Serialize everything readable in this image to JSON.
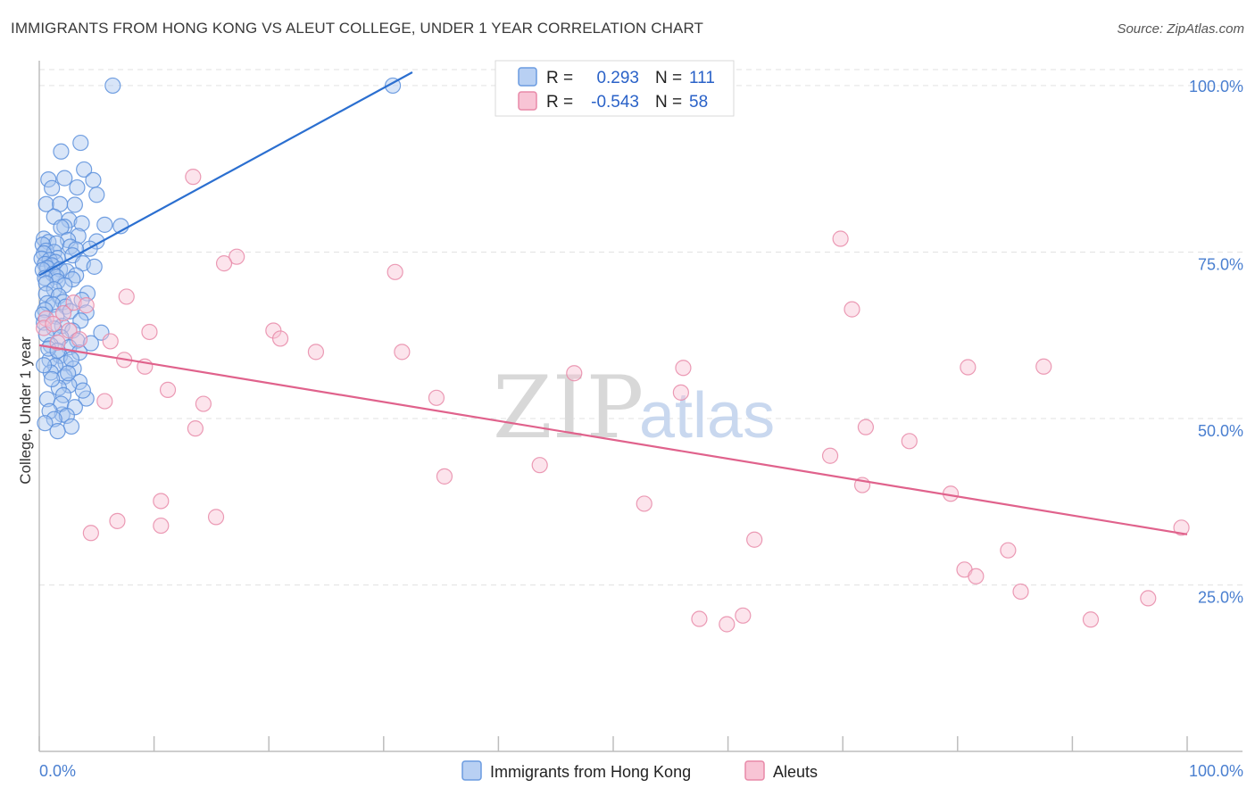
{
  "header": {
    "title": "IMMIGRANTS FROM HONG KONG VS ALEUT COLLEGE, UNDER 1 YEAR CORRELATION CHART",
    "source": "Source: ZipAtlas.com"
  },
  "watermark": {
    "zip": "ZIP",
    "atlas": "atlas"
  },
  "legend": {
    "r_label": "R =",
    "n_label": "N =",
    "rows": [
      {
        "r": "0.293",
        "n": "111",
        "color": "#6a9be0",
        "fill": "#b8d0f3"
      },
      {
        "r": "-0.543",
        "n": "58",
        "color": "#e889a8",
        "fill": "#f8c4d5"
      }
    ]
  },
  "chart_data": {
    "type": "scatter",
    "title": "IMMIGRANTS FROM HONG KONG VS ALEUT COLLEGE, UNDER 1 YEAR CORRELATION CHART",
    "xlabel": "",
    "ylabel": "College, Under 1 year",
    "xlim": [
      0,
      100
    ],
    "ylim": [
      0,
      102
    ],
    "x_tick_labels": [
      "0.0%",
      "100.0%"
    ],
    "y_ticks": [
      25,
      50,
      75,
      100
    ],
    "y_tick_labels": [
      "25.0%",
      "50.0%",
      "75.0%",
      "100.0%"
    ],
    "grid": true,
    "legend_position": "top-center",
    "series": [
      {
        "name": "Immigrants from Hong Kong",
        "color": "#5b8fdc",
        "fill": "#a9c6f0",
        "line_color": "#2b6fd0",
        "trend": {
          "x": [
            0.0,
            32.5
          ],
          "y": [
            71.5,
            102.0
          ]
        },
        "points": [
          [
            6.4,
            100
          ],
          [
            30.8,
            100
          ],
          [
            3.6,
            91.4
          ],
          [
            1.9,
            90.1
          ],
          [
            3.9,
            87.4
          ],
          [
            2.2,
            86.1
          ],
          [
            0.8,
            85.9
          ],
          [
            4.7,
            85.8
          ],
          [
            1.1,
            84.6
          ],
          [
            3.3,
            84.7
          ],
          [
            5.0,
            83.6
          ],
          [
            0.6,
            82.2
          ],
          [
            1.8,
            82.2
          ],
          [
            3.1,
            82.1
          ],
          [
            1.3,
            80.3
          ],
          [
            2.6,
            79.8
          ],
          [
            3.7,
            79.3
          ],
          [
            5.7,
            79.1
          ],
          [
            7.1,
            78.9
          ],
          [
            2.2,
            78.8
          ],
          [
            1.9,
            78.7
          ],
          [
            3.4,
            77.4
          ],
          [
            0.4,
            77.0
          ],
          [
            2.5,
            76.8
          ],
          [
            5.0,
            76.6
          ],
          [
            0.8,
            76.5
          ],
          [
            1.5,
            76.3
          ],
          [
            0.3,
            76.1
          ],
          [
            2.7,
            75.8
          ],
          [
            4.4,
            75.5
          ],
          [
            3.2,
            75.4
          ],
          [
            0.6,
            75.2
          ],
          [
            1.3,
            75.0
          ],
          [
            0.4,
            74.8
          ],
          [
            2.9,
            74.5
          ],
          [
            1.6,
            74.1
          ],
          [
            0.2,
            74.0
          ],
          [
            0.9,
            73.8
          ],
          [
            1.4,
            73.5
          ],
          [
            3.8,
            73.3
          ],
          [
            0.5,
            73.2
          ],
          [
            1.1,
            73.0
          ],
          [
            4.8,
            72.8
          ],
          [
            0.7,
            72.6
          ],
          [
            1.8,
            72.4
          ],
          [
            0.3,
            72.3
          ],
          [
            2.4,
            72.1
          ],
          [
            1.2,
            71.7
          ],
          [
            3.2,
            71.5
          ],
          [
            1.5,
            71.3
          ],
          [
            0.5,
            71.1
          ],
          [
            2.9,
            70.9
          ],
          [
            1.6,
            70.6
          ],
          [
            0.6,
            70.3
          ],
          [
            2.2,
            70.0
          ],
          [
            1.3,
            69.4
          ],
          [
            4.2,
            68.8
          ],
          [
            0.6,
            68.7
          ],
          [
            1.7,
            68.4
          ],
          [
            3.7,
            67.8
          ],
          [
            2.1,
            67.5
          ],
          [
            0.7,
            67.3
          ],
          [
            1.2,
            67.1
          ],
          [
            2.3,
            66.8
          ],
          [
            0.5,
            66.3
          ],
          [
            2.7,
            66.1
          ],
          [
            4.1,
            65.9
          ],
          [
            0.3,
            65.6
          ],
          [
            1.5,
            65.3
          ],
          [
            3.6,
            64.7
          ],
          [
            0.4,
            64.4
          ],
          [
            2.0,
            63.9
          ],
          [
            1.3,
            63.5
          ],
          [
            2.9,
            63.2
          ],
          [
            5.4,
            62.9
          ],
          [
            0.6,
            62.6
          ],
          [
            1.9,
            62.2
          ],
          [
            3.3,
            61.7
          ],
          [
            4.5,
            61.3
          ],
          [
            1.0,
            61.0
          ],
          [
            2.6,
            60.7
          ],
          [
            3.5,
            59.9
          ],
          [
            1.8,
            59.4
          ],
          [
            0.9,
            58.8
          ],
          [
            2.3,
            58.3
          ],
          [
            1.4,
            57.9
          ],
          [
            3.0,
            57.5
          ],
          [
            1.0,
            56.9
          ],
          [
            2.2,
            56.3
          ],
          [
            3.5,
            55.5
          ],
          [
            2.6,
            55.0
          ],
          [
            1.7,
            54.6
          ],
          [
            4.1,
            53.0
          ],
          [
            2.0,
            50.6
          ],
          [
            0.8,
            60.5
          ],
          [
            1.6,
            60.2
          ],
          [
            2.8,
            58.9
          ],
          [
            0.4,
            58.0
          ],
          [
            2.5,
            56.8
          ],
          [
            1.1,
            55.9
          ],
          [
            3.8,
            54.2
          ],
          [
            2.1,
            53.5
          ],
          [
            0.7,
            52.9
          ],
          [
            1.9,
            52.2
          ],
          [
            3.1,
            51.7
          ],
          [
            0.9,
            51.1
          ],
          [
            2.4,
            50.4
          ],
          [
            1.3,
            49.9
          ],
          [
            0.5,
            49.3
          ],
          [
            2.8,
            48.8
          ],
          [
            1.6,
            48.1
          ]
        ]
      },
      {
        "name": "Aleuts",
        "color": "#e889a8",
        "fill": "#f8c4d5",
        "line_color": "#e0628c",
        "trend": {
          "x": [
            0.0,
            100.0
          ],
          "y": [
            61.0,
            32.6
          ]
        },
        "points": [
          [
            13.4,
            86.3
          ],
          [
            69.8,
            77.0
          ],
          [
            17.2,
            74.3
          ],
          [
            16.1,
            73.3
          ],
          [
            31.0,
            72.0
          ],
          [
            7.6,
            68.3
          ],
          [
            70.8,
            66.4
          ],
          [
            3.0,
            67.4
          ],
          [
            0.6,
            65.0
          ],
          [
            0.4,
            63.6
          ],
          [
            2.6,
            63.2
          ],
          [
            9.6,
            63.0
          ],
          [
            20.4,
            63.2
          ],
          [
            21.0,
            62.0
          ],
          [
            6.2,
            61.6
          ],
          [
            1.6,
            61.4
          ],
          [
            24.1,
            60.0
          ],
          [
            31.6,
            60.0
          ],
          [
            7.4,
            58.8
          ],
          [
            9.2,
            57.8
          ],
          [
            46.6,
            56.8
          ],
          [
            56.1,
            57.6
          ],
          [
            80.9,
            57.7
          ],
          [
            87.5,
            57.8
          ],
          [
            11.2,
            54.3
          ],
          [
            55.9,
            53.9
          ],
          [
            34.6,
            53.1
          ],
          [
            5.7,
            52.6
          ],
          [
            14.3,
            52.2
          ],
          [
            72.0,
            48.7
          ],
          [
            13.6,
            48.5
          ],
          [
            75.8,
            46.6
          ],
          [
            68.9,
            44.4
          ],
          [
            43.6,
            43.0
          ],
          [
            35.3,
            41.3
          ],
          [
            71.7,
            40.0
          ],
          [
            79.4,
            38.7
          ],
          [
            10.6,
            37.6
          ],
          [
            52.7,
            37.2
          ],
          [
            6.8,
            34.6
          ],
          [
            15.4,
            35.2
          ],
          [
            10.6,
            33.9
          ],
          [
            4.5,
            32.8
          ],
          [
            99.5,
            33.6
          ],
          [
            62.3,
            31.8
          ],
          [
            84.4,
            30.2
          ],
          [
            80.6,
            27.3
          ],
          [
            81.6,
            26.3
          ],
          [
            85.5,
            24.0
          ],
          [
            96.6,
            23.0
          ],
          [
            61.3,
            20.4
          ],
          [
            57.5,
            19.9
          ],
          [
            59.9,
            19.1
          ],
          [
            91.6,
            19.8
          ],
          [
            4.1,
            67.0
          ],
          [
            2.1,
            65.8
          ],
          [
            1.2,
            64.2
          ],
          [
            3.5,
            61.9
          ]
        ]
      }
    ]
  },
  "bottom_legend": [
    {
      "label": "Immigrants from Hong Kong",
      "color": "#6a9be0",
      "fill": "#b8d0f3"
    },
    {
      "label": "Aleuts",
      "color": "#e889a8",
      "fill": "#f8c4d5"
    }
  ]
}
